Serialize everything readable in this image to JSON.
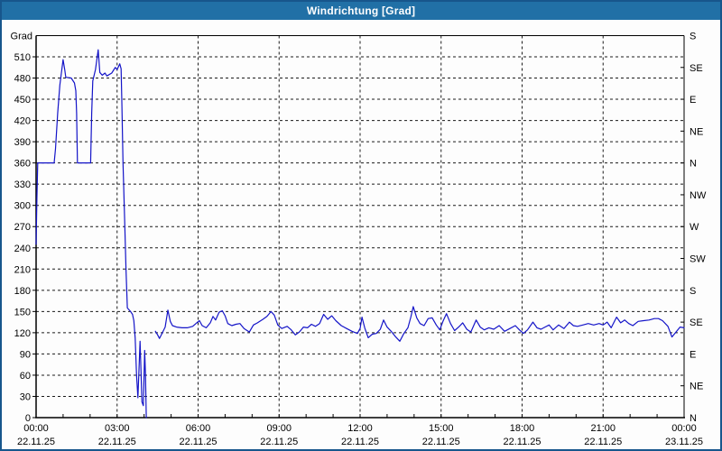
{
  "window": {
    "title": "Windrichtung [Grad]"
  },
  "colors": {
    "titlebar": "#2170a6",
    "frame_border": "#17568c",
    "plot_background": "#fdfdfd",
    "grid": "#1a1a1a",
    "axis": "#000000",
    "label_text": "#000000",
    "series_line": "#1414c8"
  },
  "chart_data": {
    "type": "line",
    "title": "Windrichtung [Grad]",
    "y_left_axis_label": "Grad",
    "ylim": [
      0,
      540
    ],
    "y_left_tick_step": 30,
    "y_left_ticks": [
      0,
      30,
      60,
      90,
      120,
      150,
      180,
      210,
      240,
      270,
      300,
      330,
      360,
      390,
      420,
      450,
      480,
      510
    ],
    "y_right_ticks": [
      {
        "value": 0,
        "label": "N"
      },
      {
        "value": 45,
        "label": "NE"
      },
      {
        "value": 90,
        "label": "E"
      },
      {
        "value": 135,
        "label": "SE"
      },
      {
        "value": 180,
        "label": "S"
      },
      {
        "value": 225,
        "label": "SW"
      },
      {
        "value": 270,
        "label": "W"
      },
      {
        "value": 315,
        "label": "NW"
      },
      {
        "value": 360,
        "label": "N"
      },
      {
        "value": 405,
        "label": "NE"
      },
      {
        "value": 450,
        "label": "E"
      },
      {
        "value": 495,
        "label": "SE"
      },
      {
        "value": 540,
        "label": "S"
      }
    ],
    "xlim_hours": [
      0,
      24
    ],
    "x_minor_tick_step_hours": 1,
    "x_major_ticks": [
      {
        "hour": 0,
        "time": "00:00",
        "date": "22.11.25"
      },
      {
        "hour": 3,
        "time": "03:00",
        "date": "22.11.25"
      },
      {
        "hour": 6,
        "time": "06:00",
        "date": "22.11.25"
      },
      {
        "hour": 9,
        "time": "09:00",
        "date": "22.11.25"
      },
      {
        "hour": 12,
        "time": "12:00",
        "date": "22.11.25"
      },
      {
        "hour": 15,
        "time": "15:00",
        "date": "22.11.25"
      },
      {
        "hour": 18,
        "time": "18:00",
        "date": "22.11.25"
      },
      {
        "hour": 21,
        "time": "21:00",
        "date": "22.11.25"
      },
      {
        "hour": 24,
        "time": "00:00",
        "date": "23.11.25"
      }
    ],
    "grid": "dashed",
    "legend": "none",
    "series": [
      {
        "name": "Windrichtung",
        "color": "#1414c8",
        "units": "Grad",
        "segments": [
          [
            [
              0.0,
              245
            ],
            [
              0.03,
              310
            ],
            [
              0.06,
              360
            ],
            [
              0.67,
              360
            ],
            [
              0.72,
              380
            ],
            [
              0.8,
              430
            ],
            [
              0.88,
              470
            ],
            [
              1.0,
              506
            ],
            [
              1.06,
              492
            ],
            [
              1.1,
              481
            ],
            [
              1.3,
              480
            ],
            [
              1.42,
              473
            ],
            [
              1.47,
              462
            ],
            [
              1.5,
              430
            ],
            [
              1.53,
              360
            ],
            [
              2.02,
              360
            ],
            [
              2.06,
              430
            ],
            [
              2.1,
              476
            ],
            [
              2.2,
              492
            ],
            [
              2.3,
              520
            ],
            [
              2.36,
              488
            ],
            [
              2.45,
              484
            ],
            [
              2.55,
              487
            ],
            [
              2.62,
              483
            ],
            [
              2.8,
              487
            ],
            [
              2.93,
              495
            ],
            [
              3.0,
              492
            ],
            [
              3.1,
              500
            ],
            [
              3.15,
              493
            ],
            [
              3.18,
              440
            ],
            [
              3.22,
              360
            ],
            [
              3.28,
              280
            ],
            [
              3.33,
              210
            ],
            [
              3.38,
              155
            ],
            [
              3.5,
              150
            ],
            [
              3.57,
              146
            ],
            [
              3.62,
              137
            ],
            [
              3.67,
              112
            ],
            [
              3.72,
              60
            ],
            [
              3.77,
              28
            ],
            [
              3.85,
              108
            ],
            [
              3.92,
              22
            ],
            [
              3.97,
              17
            ],
            [
              4.02,
              95
            ],
            [
              4.05,
              60
            ],
            [
              4.08,
              0
            ]
          ],
          [
            [
              4.42,
              122
            ],
            [
              4.5,
              117
            ],
            [
              4.57,
              112
            ],
            [
              4.65,
              118
            ],
            [
              4.78,
              128
            ],
            [
              4.88,
              152
            ],
            [
              4.97,
              136
            ],
            [
              5.05,
              130
            ],
            [
              5.2,
              128
            ],
            [
              5.4,
              127
            ],
            [
              5.6,
              127
            ],
            [
              5.8,
              129
            ],
            [
              5.95,
              134
            ],
            [
              6.05,
              137
            ],
            [
              6.15,
              130
            ],
            [
              6.3,
              127
            ],
            [
              6.45,
              134
            ],
            [
              6.55,
              143
            ],
            [
              6.65,
              138
            ],
            [
              6.78,
              149
            ],
            [
              6.9,
              151
            ],
            [
              7.0,
              144
            ],
            [
              7.1,
              133
            ],
            [
              7.25,
              130
            ],
            [
              7.4,
              132
            ],
            [
              7.55,
              133
            ],
            [
              7.7,
              126
            ],
            [
              7.9,
              121
            ],
            [
              8.05,
              131
            ],
            [
              8.2,
              134
            ],
            [
              8.4,
              139
            ],
            [
              8.55,
              143
            ],
            [
              8.7,
              150
            ],
            [
              8.82,
              145
            ],
            [
              8.95,
              131
            ],
            [
              9.1,
              126
            ],
            [
              9.3,
              129
            ],
            [
              9.45,
              124
            ],
            [
              9.6,
              117
            ],
            [
              9.75,
              121
            ],
            [
              9.9,
              128
            ],
            [
              10.05,
              127
            ],
            [
              10.2,
              132
            ],
            [
              10.35,
              129
            ],
            [
              10.5,
              133
            ],
            [
              10.65,
              146
            ],
            [
              10.8,
              139
            ],
            [
              10.95,
              144
            ],
            [
              11.1,
              137
            ],
            [
              11.3,
              130
            ],
            [
              11.5,
              126
            ],
            [
              11.7,
              122
            ],
            [
              11.9,
              119
            ],
            [
              12.0,
              126
            ],
            [
              12.07,
              142
            ],
            [
              12.17,
              127
            ],
            [
              12.3,
              113
            ],
            [
              12.45,
              118
            ],
            [
              12.6,
              119
            ],
            [
              12.75,
              125
            ],
            [
              12.87,
              138
            ],
            [
              13.0,
              128
            ],
            [
              13.15,
              122
            ],
            [
              13.32,
              114
            ],
            [
              13.47,
              108
            ],
            [
              13.62,
              119
            ],
            [
              13.77,
              127
            ],
            [
              13.88,
              142
            ],
            [
              13.97,
              157
            ],
            [
              14.1,
              141
            ],
            [
              14.22,
              133
            ],
            [
              14.37,
              130
            ],
            [
              14.52,
              140
            ],
            [
              14.67,
              141
            ],
            [
              14.82,
              131
            ],
            [
              14.95,
              124
            ],
            [
              15.07,
              136
            ],
            [
              15.2,
              147
            ],
            [
              15.35,
              133
            ],
            [
              15.5,
              123
            ],
            [
              15.65,
              128
            ],
            [
              15.8,
              134
            ],
            [
              15.95,
              125
            ],
            [
              16.1,
              121
            ],
            [
              16.3,
              138
            ],
            [
              16.45,
              128
            ],
            [
              16.6,
              124
            ],
            [
              16.77,
              127
            ],
            [
              16.95,
              125
            ],
            [
              17.15,
              130
            ],
            [
              17.35,
              122
            ],
            [
              17.55,
              126
            ],
            [
              17.75,
              130
            ],
            [
              17.9,
              124
            ],
            [
              18.05,
              119
            ],
            [
              18.2,
              124
            ],
            [
              18.4,
              135
            ],
            [
              18.55,
              127
            ],
            [
              18.7,
              125
            ],
            [
              18.85,
              128
            ],
            [
              19.0,
              131
            ],
            [
              19.15,
              124
            ],
            [
              19.35,
              131
            ],
            [
              19.55,
              126
            ],
            [
              19.75,
              135
            ],
            [
              19.9,
              130
            ],
            [
              20.05,
              129
            ],
            [
              20.25,
              131
            ],
            [
              20.45,
              133
            ],
            [
              20.65,
              131
            ],
            [
              20.85,
              133
            ],
            [
              21.0,
              131
            ],
            [
              21.15,
              135
            ],
            [
              21.3,
              127
            ],
            [
              21.5,
              142
            ],
            [
              21.65,
              134
            ],
            [
              21.8,
              138
            ],
            [
              21.95,
              133
            ],
            [
              22.1,
              130
            ],
            [
              22.3,
              136
            ],
            [
              22.5,
              137
            ],
            [
              22.7,
              138
            ],
            [
              22.9,
              140
            ],
            [
              23.05,
              140
            ],
            [
              23.2,
              137
            ],
            [
              23.4,
              129
            ],
            [
              23.55,
              114
            ],
            [
              23.7,
              121
            ],
            [
              23.85,
              128
            ],
            [
              24.0,
              127
            ]
          ]
        ]
      }
    ]
  }
}
